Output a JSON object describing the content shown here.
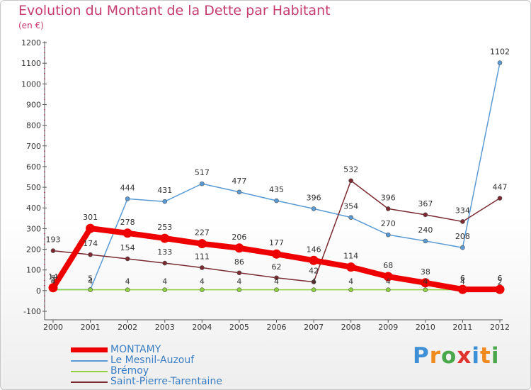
{
  "title": "Evolution du Montant de la Dette par Habitant",
  "subtitle": "(en €)",
  "logo": {
    "text": "Proxiti",
    "letter_colors": [
      "#3d8fd6",
      "#f08a1e",
      "#49a84a",
      "#e0342f",
      "#3d8fd6",
      "#f08a1e",
      "#49a84a"
    ]
  },
  "chart_data": {
    "type": "line",
    "x": [
      "2000",
      "2001",
      "2002",
      "2003",
      "2004",
      "2005",
      "2006",
      "2007",
      "2008",
      "2009",
      "2010",
      "2011",
      "2012"
    ],
    "ylim": [
      -100,
      1200
    ],
    "yticks": [
      -100,
      0,
      100,
      200,
      300,
      400,
      500,
      600,
      700,
      800,
      900,
      1000,
      1100,
      1200
    ],
    "grid": false,
    "series": [
      {
        "name": "MONTAMY",
        "color": "#ee0000",
        "width": 8,
        "values": [
          14,
          301,
          278,
          253,
          227,
          206,
          177,
          146,
          114,
          68,
          38,
          6,
          6
        ],
        "labels": [
          "14",
          "301",
          "278",
          "253",
          "227",
          "206",
          "177",
          "146",
          "114",
          "68",
          "38",
          "6",
          "6"
        ]
      },
      {
        "name": "Le Mesnil-Auzouf",
        "color": "#5b9bd5",
        "width": 1.5,
        "values": [
          5,
          5,
          444,
          431,
          517,
          477,
          435,
          396,
          354,
          270,
          240,
          208,
          1102
        ],
        "labels": [
          "5",
          "5",
          "444",
          "431",
          "517",
          "477",
          "435",
          "396",
          "354",
          "270",
          "240",
          "208",
          "1102"
        ]
      },
      {
        "name": "Brémoy",
        "color": "#8fd13f",
        "width": 1.5,
        "values": [
          4,
          4,
          4,
          4,
          4,
          4,
          4,
          4,
          4,
          4,
          4,
          4,
          2
        ],
        "labels": [
          "4",
          "4",
          "4",
          "4",
          "4",
          "4",
          "4",
          "4",
          "4",
          "4",
          "4",
          "4",
          "2"
        ]
      },
      {
        "name": "Saint-Pierre-Tarentaine",
        "color": "#7a2a30",
        "width": 1.5,
        "values": [
          193,
          174,
          154,
          133,
          111,
          86,
          62,
          42,
          532,
          396,
          367,
          334,
          447
        ],
        "labels": [
          "193",
          "174",
          "154",
          "133",
          "111",
          "86",
          "62",
          "42",
          "532",
          "396",
          "367",
          "334",
          "447"
        ]
      }
    ],
    "legend_position": "bottom-left"
  }
}
